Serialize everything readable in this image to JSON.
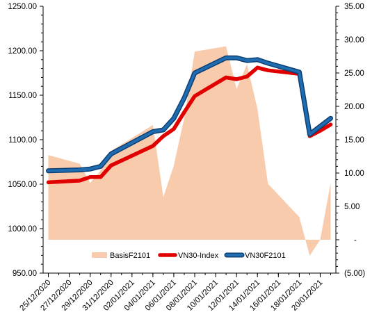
{
  "chart_data": {
    "type": "line",
    "x": [
      "25/12/2020",
      "28/12/2020",
      "29/12/2020",
      "30/12/2020",
      "31/12/2020",
      "04/01/2021",
      "05/01/2021",
      "06/01/2021",
      "07/01/2021",
      "08/01/2021",
      "11/01/2021",
      "12/01/2021",
      "13/01/2021",
      "14/01/2021",
      "15/01/2021",
      "18/01/2021",
      "19/01/2021",
      "20/01/2021",
      "21/01/2021"
    ],
    "x_tick_labels": [
      "25/12/2020",
      "27/12/2020",
      "29/12/2020",
      "31/12/2020",
      "02/01/2021",
      "04/01/2021",
      "06/01/2021",
      "08/01/2021",
      "10/01/2021",
      "12/01/2021",
      "14/01/2021",
      "16/01/2021",
      "18/01/2021",
      "20/01/2021"
    ],
    "series": [
      {
        "name": "BasisF2101",
        "kind": "area",
        "axis": "right",
        "color": "#f8cbad",
        "x": [
          "25/12/2020",
          "28/12/2020",
          "29/12/2020",
          "30/12/2020",
          "31/12/2020",
          "04/01/2021",
          "05/01/2021",
          "06/01/2021",
          "07/01/2021",
          "08/01/2021",
          "11/01/2021",
          "12/01/2021",
          "13/01/2021",
          "14/01/2021",
          "15/01/2021",
          "18/01/2021",
          "19/01/2021",
          "20/01/2021",
          "21/01/2021"
        ],
        "values": [
          12.7,
          11.4,
          8.5,
          10.4,
          13.3,
          17.2,
          6.4,
          11.1,
          18.3,
          28.2,
          29.0,
          22.6,
          26.3,
          19.6,
          8.4,
          3.4,
          -2.4,
          0.0,
          8.5
        ]
      },
      {
        "name": "VN30-Index",
        "kind": "line",
        "axis": "left",
        "color": "#e00000",
        "x": [
          "25/12/2020",
          "28/12/2020",
          "29/12/2020",
          "30/12/2020",
          "31/12/2020",
          "04/01/2021",
          "05/01/2021",
          "06/01/2021",
          "07/01/2021",
          "08/01/2021",
          "11/01/2021",
          "12/01/2021",
          "13/01/2021",
          "14/01/2021",
          "15/01/2021",
          "18/01/2021",
          "19/01/2021",
          "20/01/2021",
          "21/01/2021"
        ],
        "values": [
          1052,
          1054,
          1058,
          1058,
          1071,
          1093,
          1104,
          1112,
          1131,
          1149,
          1170,
          1168,
          1171,
          1181,
          1178,
          1174,
          1104,
          1110,
          1117
        ]
      },
      {
        "name": "VN30F2101",
        "kind": "line",
        "axis": "left",
        "color": "#1f6cb0",
        "x": [
          "25/12/2020",
          "28/12/2020",
          "29/12/2020",
          "30/12/2020",
          "31/12/2020",
          "04/01/2021",
          "05/01/2021",
          "06/01/2021",
          "07/01/2021",
          "08/01/2021",
          "11/01/2021",
          "12/01/2021",
          "13/01/2021",
          "14/01/2021",
          "15/01/2021",
          "18/01/2021",
          "19/01/2021",
          "20/01/2021",
          "21/01/2021"
        ],
        "values": [
          1065,
          1066,
          1067,
          1070,
          1084,
          1109,
          1111,
          1124,
          1147,
          1175,
          1192,
          1192,
          1189,
          1190,
          1186,
          1176,
          1106,
          1115,
          1124
        ]
      }
    ],
    "y_left": {
      "min": 950,
      "max": 1250,
      "step": 50,
      "tick_labels": [
        "950.00",
        "1000.00",
        "1050.00",
        "1100.00",
        "1150.00",
        "1200.00",
        "1250.00"
      ]
    },
    "y_right": {
      "min": -5,
      "max": 35,
      "step": 5,
      "tick_labels": [
        "(5.00)",
        "-",
        "5.00",
        "10.00",
        "15.00",
        "20.00",
        "25.00",
        "30.00",
        "35.00"
      ]
    },
    "title": "",
    "xlabel": "",
    "ylabel": "",
    "grid": false,
    "legend": {
      "placement": "bottom-inside",
      "entries": [
        "BasisF2101",
        "VN30-Index",
        "VN30F2101"
      ]
    }
  }
}
